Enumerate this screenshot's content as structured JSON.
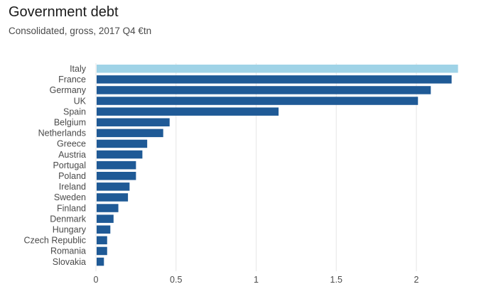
{
  "title": "Government debt",
  "subtitle": "Consolidated, gross, 2017 Q4 €tn",
  "colors": {
    "highlight": "#9fd3e7",
    "bar": "#1f5a96",
    "grid": "#e6e6e6",
    "text": "#4a4a4a"
  },
  "chart_data": {
    "type": "bar",
    "orientation": "horizontal",
    "title": "Government debt",
    "subtitle": "Consolidated, gross, 2017 Q4 €tn",
    "categories": [
      "Italy",
      "France",
      "Germany",
      "UK",
      "Spain",
      "Belgium",
      "Netherlands",
      "Greece",
      "Austria",
      "Portugal",
      "Poland",
      "Ireland",
      "Sweden",
      "Finland",
      "Denmark",
      "Hungary",
      "Czech Republic",
      "Romania",
      "Slovakia"
    ],
    "values": [
      2.26,
      2.22,
      2.09,
      2.01,
      1.14,
      0.46,
      0.42,
      0.32,
      0.29,
      0.25,
      0.25,
      0.21,
      0.2,
      0.14,
      0.11,
      0.09,
      0.07,
      0.07,
      0.05
    ],
    "highlight": [
      "Italy"
    ],
    "xticks": [
      0,
      0.5,
      1,
      1.5,
      2
    ],
    "xtick_labels": [
      "0",
      "0.5",
      "1",
      "1.5",
      "2"
    ],
    "xlim": [
      0,
      2.3
    ],
    "grid": true
  }
}
